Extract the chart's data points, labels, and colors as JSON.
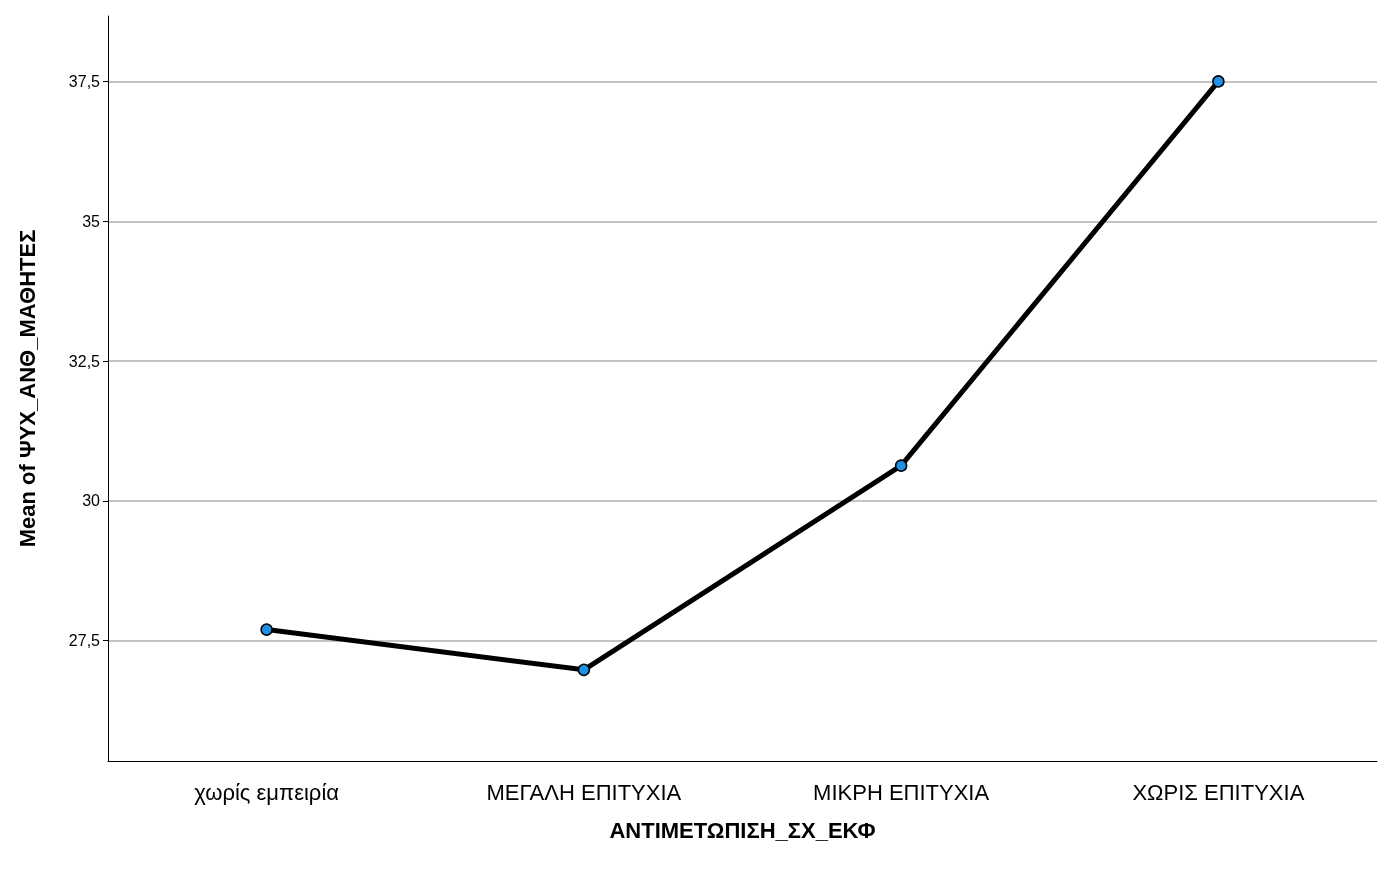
{
  "chart_data": {
    "type": "line",
    "xlabel": "ΑΝΤΙΜΕΤΩΠΙΣΗ_ΣΧ_ΕΚΦ",
    "ylabel": "Mean of ΨΥΧ_ΑΝΘ_ΜΑΘΗΤΕΣ",
    "categories": [
      "χωρίς εμπειρία",
      "ΜΕΓΑΛΗ ΕΠΙΤΥΧΙΑ",
      "ΜΙΚΡΗ ΕΠΙΤΥΧΙΑ",
      "ΧΩΡΙΣ ΕΠΙΤΥΧΙΑ"
    ],
    "series": [
      {
        "color": "#000000",
        "values": [
          27.7,
          26.98,
          30.63,
          37.5
        ]
      }
    ],
    "ylim": [
      25.35,
      38.67
    ],
    "yticks": [
      {
        "value": 27.5,
        "label": "27,5"
      },
      30,
      {
        "value": 32.5,
        "label": "32,5"
      },
      35,
      {
        "value": 37.5,
        "label": "37,5"
      }
    ],
    "grid": "y",
    "marker": "circle",
    "line_style": "solid"
  }
}
